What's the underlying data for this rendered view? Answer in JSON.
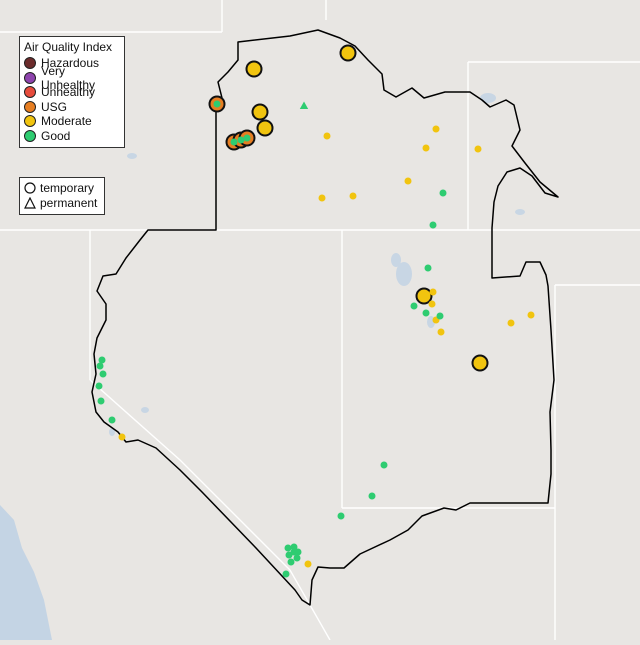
{
  "legend": {
    "title": "Air Quality Index",
    "categories": [
      {
        "label": "Hazardous",
        "color": "#6b2b2b"
      },
      {
        "label": "Very Unhealthy",
        "color": "#8e44ad"
      },
      {
        "label": "Unhealthy",
        "color": "#e74c3c"
      },
      {
        "label": "USG",
        "color": "#e67e22"
      },
      {
        "label": "Moderate",
        "color": "#f1c40f"
      },
      {
        "label": "Good",
        "color": "#2ecc71"
      }
    ],
    "shapes": [
      {
        "label": "temporary",
        "icon": "circle-outline-icon"
      },
      {
        "label": "permanent",
        "icon": "triangle-outline-icon"
      }
    ]
  },
  "colors": {
    "land": "#e8e6e3",
    "water": "#c4d4e4",
    "state_line": "#ffffff",
    "boundary": "#000000"
  },
  "monitors": [
    {
      "category": "USG",
      "kind": "temporary",
      "size": "large"
    },
    {
      "category": "USG",
      "kind": "temporary",
      "size": "large"
    },
    {
      "category": "USG",
      "kind": "temporary",
      "size": "large"
    },
    {
      "category": "USG",
      "kind": "temporary",
      "size": "large"
    },
    {
      "category": "Moderate",
      "kind": "temporary",
      "size": "large"
    },
    {
      "category": "Moderate",
      "kind": "temporary",
      "size": "large"
    },
    {
      "category": "Moderate",
      "kind": "temporary",
      "size": "large"
    },
    {
      "category": "Moderate",
      "kind": "temporary",
      "size": "large"
    },
    {
      "category": "Moderate",
      "kind": "temporary",
      "size": "large"
    },
    {
      "category": "Moderate",
      "kind": "temporary",
      "size": "large"
    },
    {
      "category": "Good",
      "kind": "permanent",
      "size": "small"
    },
    {
      "category": "Moderate",
      "kind": "permanent",
      "size": "small"
    },
    {
      "category": "Moderate",
      "kind": "permanent",
      "size": "small"
    },
    {
      "category": "Moderate",
      "kind": "permanent",
      "size": "small"
    },
    {
      "category": "Moderate",
      "kind": "permanent",
      "size": "small"
    },
    {
      "category": "Moderate",
      "kind": "permanent",
      "size": "small"
    },
    {
      "category": "Moderate",
      "kind": "permanent",
      "size": "small"
    },
    {
      "category": "Moderate",
      "kind": "permanent",
      "size": "small"
    },
    {
      "category": "Moderate",
      "kind": "permanent",
      "size": "small"
    },
    {
      "category": "Moderate",
      "kind": "permanent",
      "size": "small"
    },
    {
      "category": "Moderate",
      "kind": "permanent",
      "size": "small"
    },
    {
      "category": "Moderate",
      "kind": "permanent",
      "size": "small"
    },
    {
      "category": "Moderate",
      "kind": "permanent",
      "size": "small"
    },
    {
      "category": "Moderate",
      "kind": "permanent",
      "size": "small"
    },
    {
      "category": "Moderate",
      "kind": "permanent",
      "size": "small"
    },
    {
      "category": "Good",
      "kind": "permanent",
      "size": "small"
    },
    {
      "category": "Good",
      "kind": "permanent",
      "size": "small"
    },
    {
      "category": "Good",
      "kind": "permanent",
      "size": "small"
    },
    {
      "category": "Good",
      "kind": "permanent",
      "size": "small"
    },
    {
      "category": "Good",
      "kind": "permanent",
      "size": "small"
    },
    {
      "category": "Good",
      "kind": "permanent",
      "size": "small"
    },
    {
      "category": "Good",
      "kind": "permanent",
      "size": "small"
    },
    {
      "category": "Good",
      "kind": "permanent",
      "size": "small"
    },
    {
      "category": "Good",
      "kind": "permanent",
      "size": "small"
    },
    {
      "category": "Good",
      "kind": "permanent",
      "size": "small"
    },
    {
      "category": "Good",
      "kind": "permanent",
      "size": "small"
    },
    {
      "category": "Good",
      "kind": "permanent",
      "size": "small"
    },
    {
      "category": "Good",
      "kind": "permanent",
      "size": "small"
    },
    {
      "category": "Good",
      "kind": "permanent",
      "size": "small"
    },
    {
      "category": "Good",
      "kind": "permanent",
      "size": "small"
    },
    {
      "category": "Good",
      "kind": "permanent",
      "size": "small"
    },
    {
      "category": "Good",
      "kind": "permanent",
      "size": "small"
    },
    {
      "category": "Good",
      "kind": "permanent",
      "size": "small"
    },
    {
      "category": "Good",
      "kind": "permanent",
      "size": "small"
    },
    {
      "category": "Good",
      "kind": "permanent",
      "size": "small"
    },
    {
      "category": "Good",
      "kind": "permanent",
      "size": "small"
    },
    {
      "category": "Good",
      "kind": "permanent",
      "size": "small"
    },
    {
      "category": "Moderate",
      "kind": "permanent",
      "size": "small"
    },
    {
      "category": "Good",
      "kind": "permanent",
      "size": "small"
    },
    {
      "category": "Good",
      "kind": "permanent",
      "size": "small"
    },
    {
      "category": "Good",
      "kind": "permanent",
      "size": "small"
    },
    {
      "category": "Good",
      "kind": "permanent",
      "size": "small"
    },
    {
      "category": "Good",
      "kind": "permanent",
      "size": "small"
    }
  ]
}
